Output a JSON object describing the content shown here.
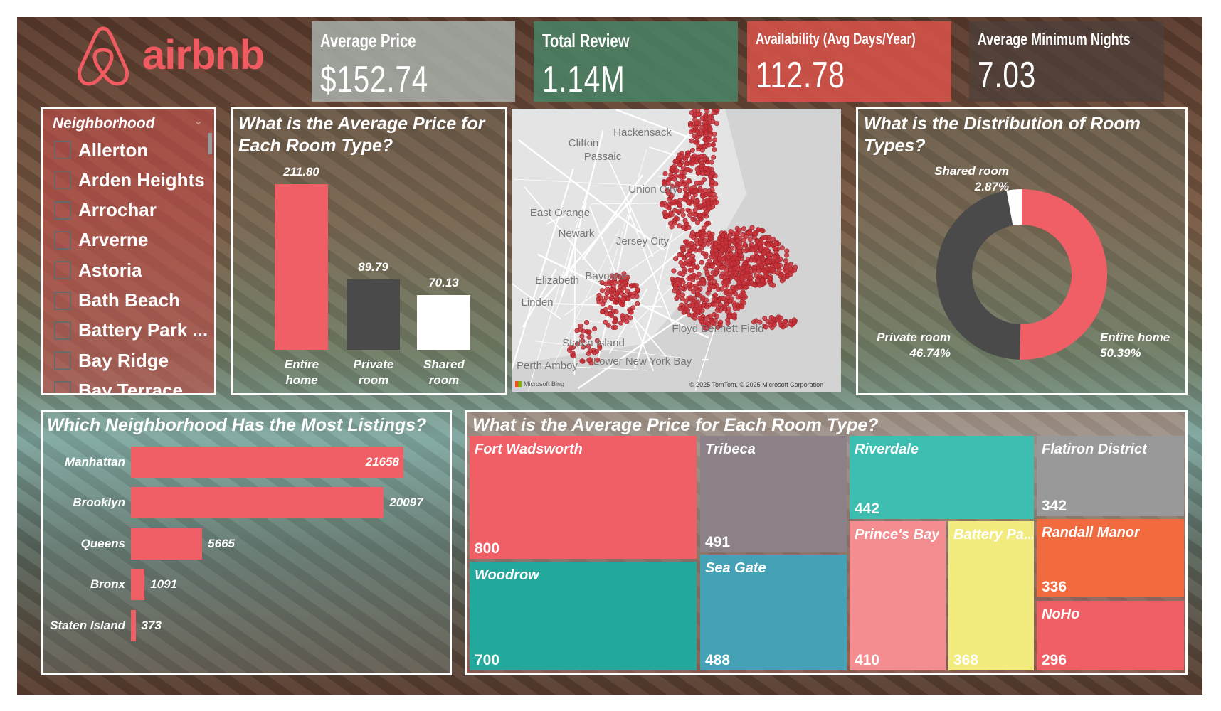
{
  "logo": {
    "text": "airbnb",
    "color": "#F05A61"
  },
  "kpis": [
    {
      "title": "Average Price",
      "value": "$152.74",
      "color": "#A9B5AF"
    },
    {
      "title": "Total Review",
      "value": "1.14M",
      "color": "#4A8466"
    },
    {
      "title": "Availability (Avg Days/Year)",
      "value": "112.78",
      "color": "#D9534A"
    },
    {
      "title": "Average Minimum Nights",
      "value": "7.03",
      "color": "#4E403B"
    }
  ],
  "slicer": {
    "header": "Neighborhood",
    "items": [
      "Allerton",
      "Arden Heights",
      "Arrochar",
      "Arverne",
      "Astoria",
      "Bath Beach",
      "Battery Park ...",
      "Bay Ridge",
      "Bay Terrace"
    ]
  },
  "chart_data": [
    {
      "type": "bar",
      "title": "What is the Average Price for Each Room Type?",
      "categories": [
        "Entire home",
        "Private room",
        "Shared room"
      ],
      "values": [
        211.8,
        89.79,
        70.13
      ],
      "value_labels": [
        "211.80",
        "89.79",
        "70.13"
      ],
      "colors": [
        "#F05F66",
        "#4A4A4A",
        "#FFFFFF"
      ]
    },
    {
      "type": "pie",
      "title": "What is the Distribution of Room Types?",
      "categories": [
        "Entire home",
        "Private room",
        "Shared room"
      ],
      "values": [
        50.39,
        46.74,
        2.87
      ],
      "value_labels": [
        "50.39%",
        "46.74%",
        "2.87%"
      ],
      "colors": [
        "#F05F66",
        "#4A4A4A",
        "#FFFFFF"
      ],
      "donut": true
    },
    {
      "type": "bar",
      "orientation": "horizontal",
      "title": "Which Neighborhood Has the Most Listings?",
      "categories": [
        "Manhattan",
        "Brooklyn",
        "Queens",
        "Bronx",
        "Staten Island"
      ],
      "values": [
        21658,
        20097,
        5665,
        1091,
        373
      ],
      "color": "#F05F66"
    },
    {
      "type": "treemap",
      "title": "What is the Average Price for Each Room Type?",
      "categories": [
        "Fort Wadsworth",
        "Woodrow",
        "Tribeca",
        "Sea Gate",
        "Riverdale",
        "Prince's Bay",
        "Battery Pa...",
        "Flatiron District",
        "Randall Manor",
        "NoHo"
      ],
      "values": [
        800,
        700,
        491,
        488,
        442,
        410,
        368,
        342,
        336,
        296
      ],
      "colors": [
        "#F05F66",
        "#22A99B",
        "#8C8089",
        "#45A2B6",
        "#3DBEB0",
        "#F48D90",
        "#F2EC7E",
        "#999999",
        "#F26B3E",
        "#F05F66"
      ]
    }
  ],
  "map": {
    "labels": [
      "Hackensack",
      "Clifton",
      "Passaic",
      "Union City",
      "East Orange",
      "Newark",
      "Jersey City",
      "Elizabeth",
      "Bayonne",
      "Linden",
      "Lower New York Bay",
      "Floyd Bennett Field",
      "Staten Island",
      "Perth Amboy"
    ],
    "copyright": "© 2025 TomTom, © 2025 Microsoft Corporation",
    "provider": "Microsoft Bing",
    "dot_color": "#C8323A"
  }
}
